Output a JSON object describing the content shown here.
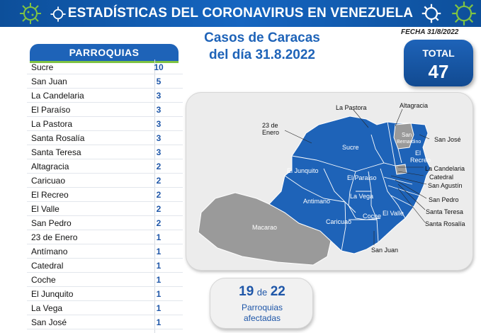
{
  "header": {
    "title": "ESTADÍSTICAS DEL CORONAVIRUS EN VENEZUELA"
  },
  "fecha": "FECHA 31/8/2022",
  "table": {
    "heading": "PARROQUIAS",
    "rows": [
      {
        "name": "Sucre",
        "value": "10"
      },
      {
        "name": "San Juan",
        "value": "5"
      },
      {
        "name": "La Candelaria",
        "value": "3"
      },
      {
        "name": "El Paraíso",
        "value": "3"
      },
      {
        "name": "La Pastora",
        "value": "3"
      },
      {
        "name": "Santa Rosalía",
        "value": "3"
      },
      {
        "name": "Santa Teresa",
        "value": "3"
      },
      {
        "name": "Altagracia",
        "value": "2"
      },
      {
        "name": "Caricuao",
        "value": "2"
      },
      {
        "name": "El Recreo",
        "value": "2"
      },
      {
        "name": "El Valle",
        "value": "2"
      },
      {
        "name": "San Pedro",
        "value": "2"
      },
      {
        "name": "23 de Enero",
        "value": "1"
      },
      {
        "name": "Antímano",
        "value": "1"
      },
      {
        "name": "Catedral",
        "value": "1"
      },
      {
        "name": "Coche",
        "value": "1"
      },
      {
        "name": "El Junquito",
        "value": "1"
      },
      {
        "name": "La Vega",
        "value": "1"
      },
      {
        "name": "San José",
        "value": "1"
      }
    ]
  },
  "casos": {
    "line1": "Casos de Caracas",
    "line2": "del día 31.8.2022"
  },
  "total": {
    "label": "TOTAL",
    "value": "47"
  },
  "map": {
    "colors": {
      "affected": "#1e63b8",
      "unaffected": "#9a9a9a",
      "border": "#ffffff"
    },
    "labels": {
      "la_pastora": "La Pastora",
      "altagracia": "Altagracia",
      "enero_1": "23 de",
      "enero_2": "Enero",
      "san_bernardino_1": "San",
      "san_bernardino_2": "Bernardino",
      "san_jose": "San José",
      "sucre": "Sucre",
      "el_recreo_1": "El",
      "el_recreo_2": "Recreo",
      "la_candelaria": "La Candelaria",
      "catedral": "Catedral",
      "san_agustin": "San Agustín",
      "el_junquito": "El Junquito",
      "el_paraiso": "El Paraíso",
      "la_vega": "La Vega",
      "san_pedro": "San Pedro",
      "antimano": "Antimano",
      "santa_teresa": "Santa Teresa",
      "el_valle": "El Valle",
      "coche": "Coche",
      "santa_rosalia": "Santa Rosalía",
      "caricuao": "Caricuao",
      "macarao": "Macarao",
      "san_juan": "San Juan"
    }
  },
  "affected": {
    "count": "19",
    "of": "de",
    "total": "22",
    "line1": "Parroquias",
    "line2": "afectadas"
  }
}
